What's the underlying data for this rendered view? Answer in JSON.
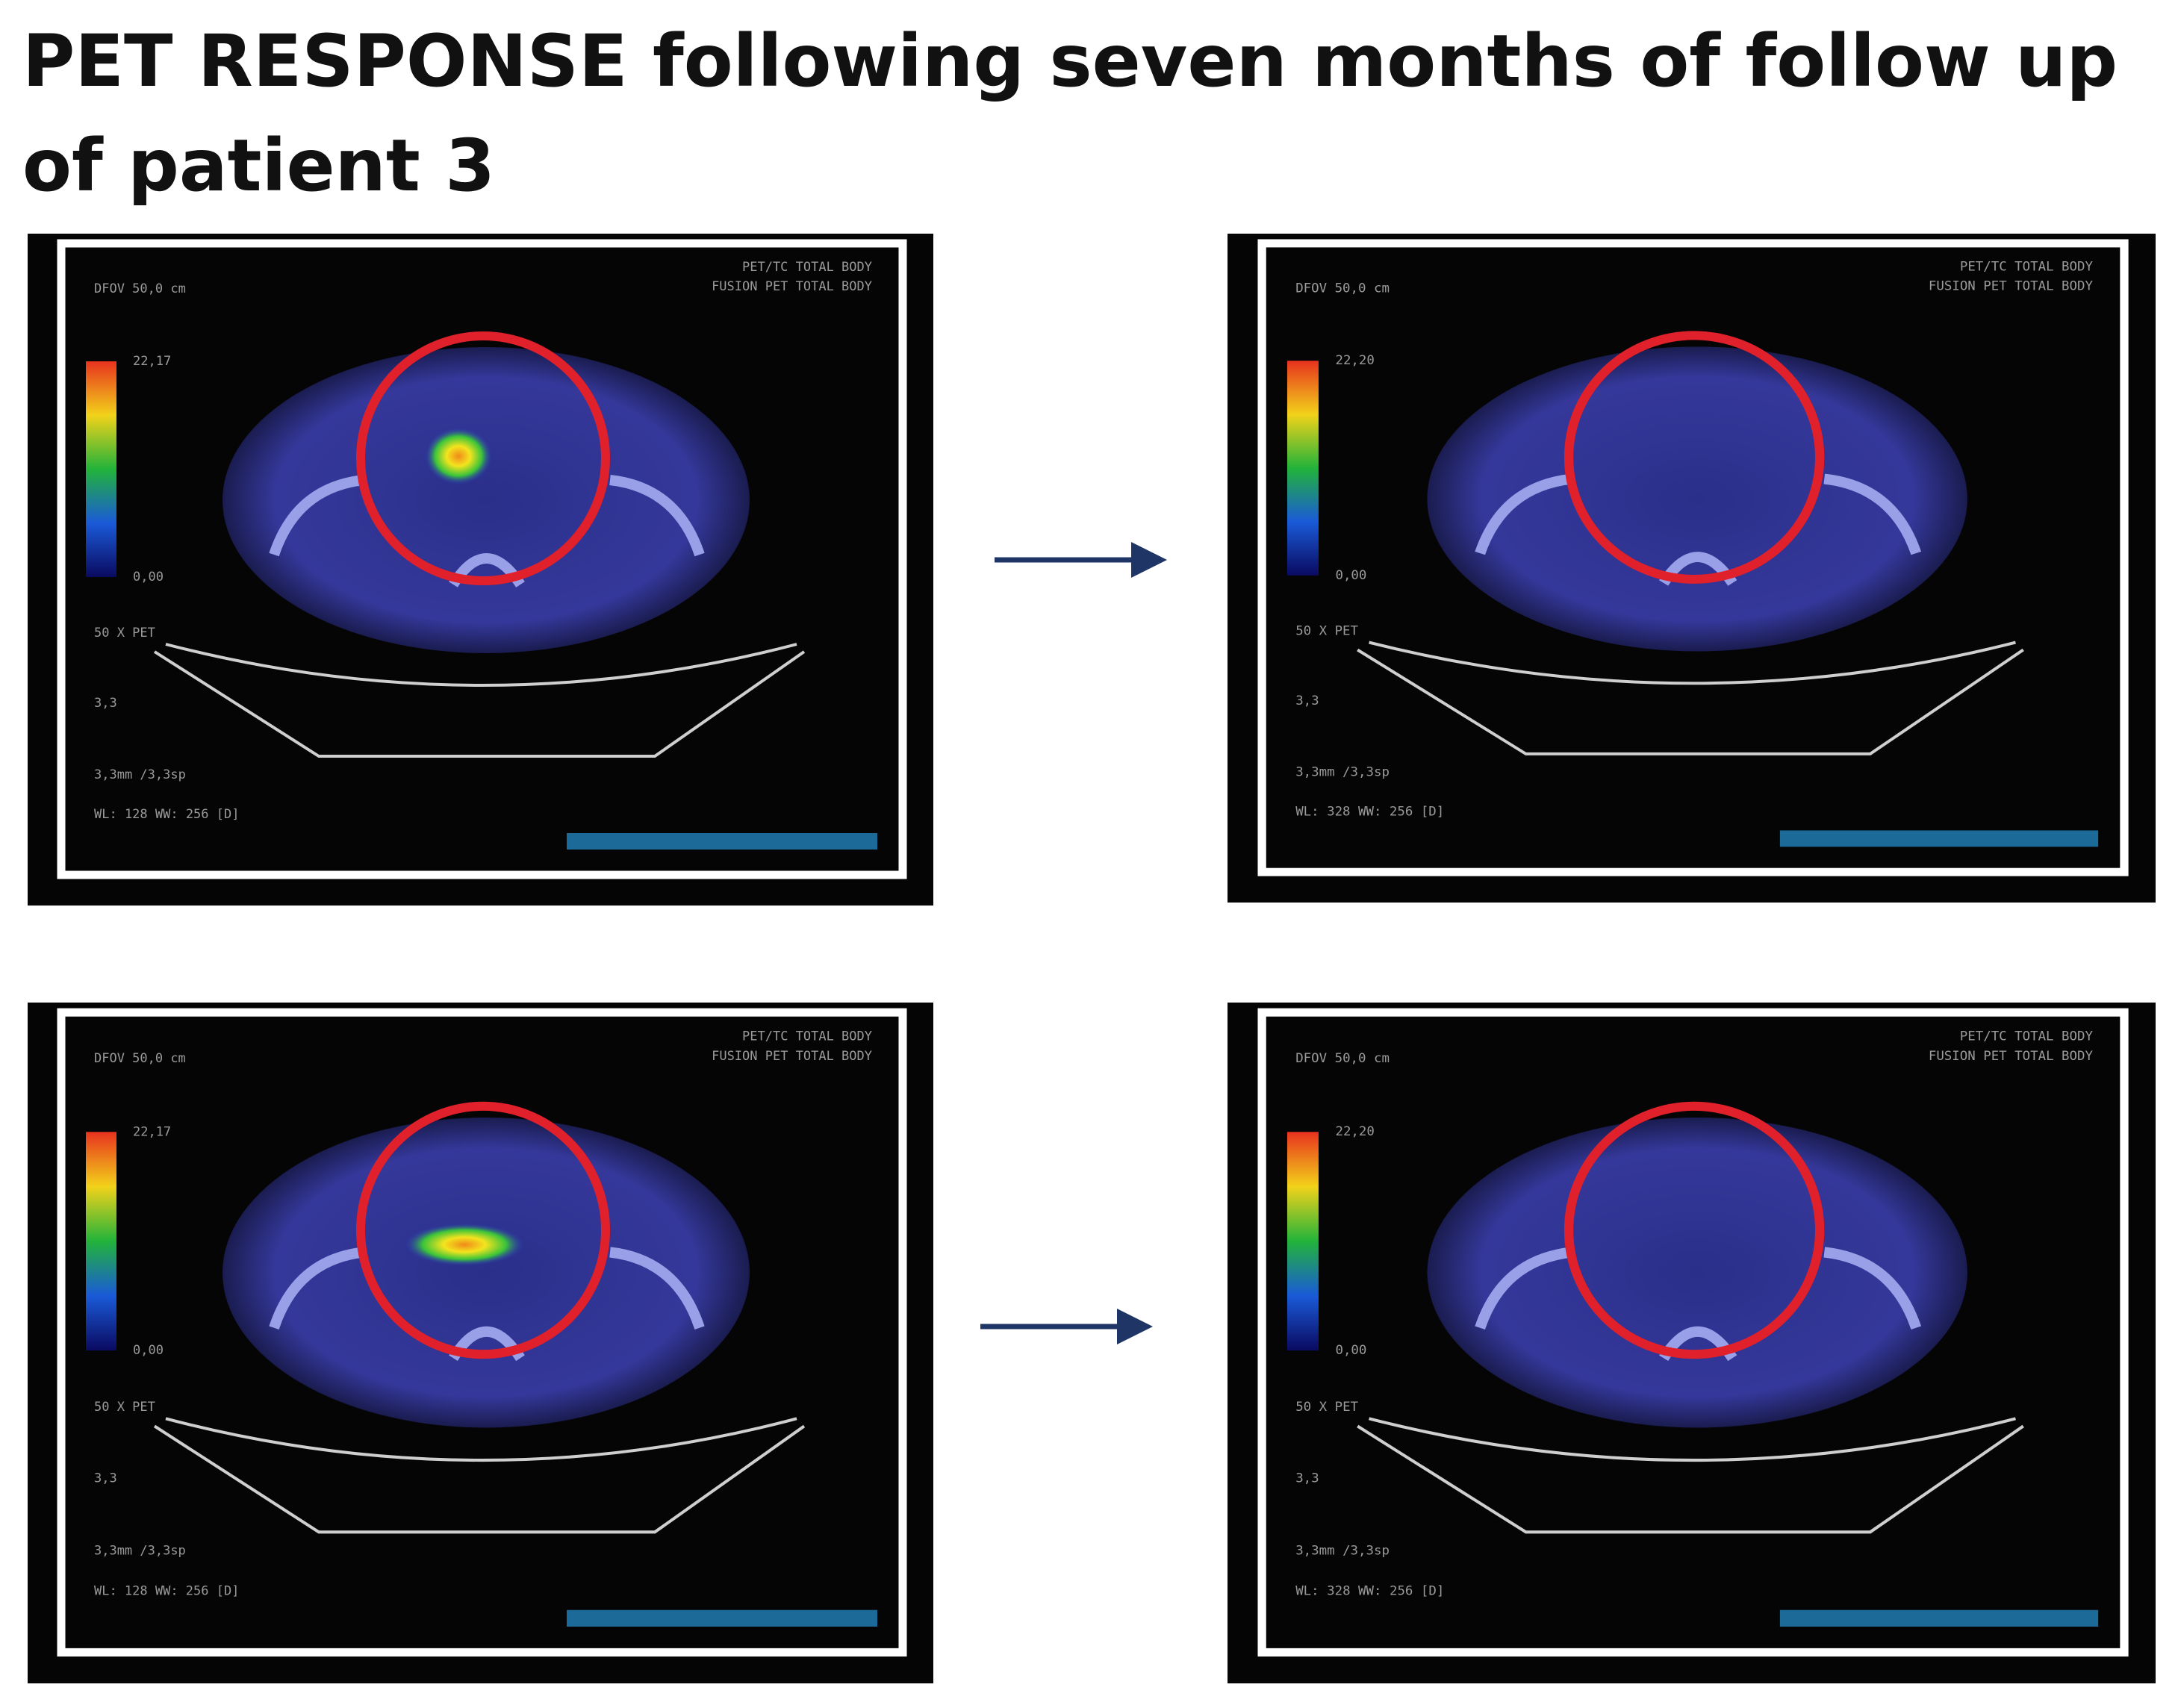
{
  "title_lines": [
    "PET RESPONSE following seven months of follow up",
    "of patient 3"
  ],
  "panels": [
    {
      "header": [
        "PET/TC TOTAL BODY",
        "FUSION PET TOTAL BODY"
      ],
      "dfov": "DFOV 50,0 cm",
      "scale_max": "22,17",
      "scale_min": "0,00",
      "mode": "50 X PET",
      "thickness": "3,3",
      "slice": "3,3mm /3,3sp",
      "window": "WL: 128 WW: 256 [D]"
    },
    {
      "header": [
        "PET/TC TOTAL BODY",
        "FUSION PET TOTAL BODY"
      ],
      "dfov": "DFOV 50,0 cm",
      "scale_max": "22,20",
      "scale_min": "0,00",
      "mode": "50 X PET",
      "thickness": "3,3",
      "slice": "3,3mm /3,3sp",
      "window": "WL: 328 WW: 256 [D]"
    },
    {
      "header": [
        "PET/TC TOTAL BODY",
        "FUSION PET TOTAL BODY"
      ],
      "dfov": "DFOV 50,0 cm",
      "scale_max": "22,17",
      "scale_min": "0,00",
      "mode": "50 X PET",
      "thickness": "3,3",
      "slice": "3,3mm /3,3sp",
      "window": "WL: 128 WW: 256 [D]"
    },
    {
      "header": [
        "PET/TC TOTAL BODY",
        "FUSION PET TOTAL BODY"
      ],
      "dfov": "DFOV 50,0 cm",
      "scale_max": "22,20",
      "scale_min": "0,00",
      "mode": "50 X PET",
      "thickness": "3,3",
      "slice": "3,3mm /3,3sp",
      "window": "WL: 328 WW: 256 [D]"
    }
  ]
}
